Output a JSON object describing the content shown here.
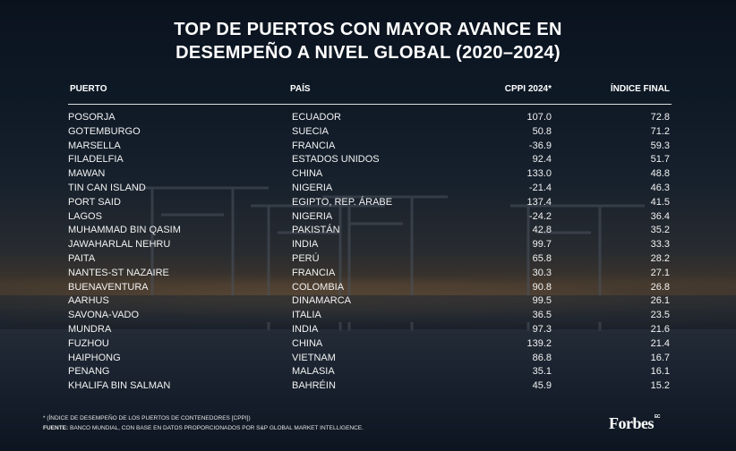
{
  "title": {
    "line1": "TOP DE PUERTOS CON MAYOR AVANCE EN",
    "line2": "DESEMPEÑO A NIVEL GLOBAL (2020–2024)"
  },
  "table": {
    "headers": {
      "port": "PUERTO",
      "country": "PAÍS",
      "cppi": "CPPI 2024*",
      "index": "ÍNDICE FINAL"
    },
    "rows": [
      {
        "port": "POSORJA",
        "country": "ECUADOR",
        "cppi": "107.0",
        "index": "72.8"
      },
      {
        "port": "GOTEMBURGO",
        "country": "SUECIA",
        "cppi": "50.8",
        "index": "71.2"
      },
      {
        "port": "MARSELLA",
        "country": "FRANCIA",
        "cppi": "-36.9",
        "index": "59.3"
      },
      {
        "port": "FILADELFIA",
        "country": "ESTADOS UNIDOS",
        "cppi": "92.4",
        "index": "51.7"
      },
      {
        "port": "MAWAN",
        "country": "CHINA",
        "cppi": "133.0",
        "index": "48.8"
      },
      {
        "port": "TIN CAN ISLAND",
        "country": "NIGERIA",
        "cppi": "-21.4",
        "index": "46.3"
      },
      {
        "port": "PORT SAID",
        "country": "EGIPTO, REP. ÁRABE",
        "cppi": "137.4",
        "index": "41.5"
      },
      {
        "port": "LAGOS",
        "country": "NIGERIA",
        "cppi": "-24.2",
        "index": "36.4"
      },
      {
        "port": "MUHAMMAD BIN QASIM",
        "country": "PAKISTÁN",
        "cppi": "42.8",
        "index": "35.2"
      },
      {
        "port": "JAWAHARLAL NEHRU",
        "country": "INDIA",
        "cppi": "99.7",
        "index": "33.3"
      },
      {
        "port": "PAITA",
        "country": "PERÚ",
        "cppi": "65.8",
        "index": "28.2"
      },
      {
        "port": "NANTES-ST NAZAIRE",
        "country": "FRANCIA",
        "cppi": "30.3",
        "index": "27.1"
      },
      {
        "port": "BUENAVENTURA",
        "country": "COLOMBIA",
        "cppi": "90.8",
        "index": "26.8"
      },
      {
        "port": "AARHUS",
        "country": "DINAMARCA",
        "cppi": "99.5",
        "index": "26.1"
      },
      {
        "port": "SAVONA-VADO",
        "country": "ITALIA",
        "cppi": "36.5",
        "index": "23.5"
      },
      {
        "port": "MUNDRA",
        "country": "INDIA",
        "cppi": "97.3",
        "index": "21.6"
      },
      {
        "port": "FUZHOU",
        "country": "CHINA",
        "cppi": "139.2",
        "index": "21.4"
      },
      {
        "port": "HAIPHONG",
        "country": "VIETNAM",
        "cppi": "86.8",
        "index": "16.7"
      },
      {
        "port": "PENANG",
        "country": "MALASIA",
        "cppi": "35.1",
        "index": "16.1"
      },
      {
        "port": "KHALIFA BIN SALMAN",
        "country": "BAHRÉIN",
        "cppi": "45.9",
        "index": "15.2"
      }
    ]
  },
  "footnote": {
    "note": "* (ÍNDICE DE DESEMPEÑO DE LOS PUERTOS DE CONTENEDORES [CPPI])",
    "source_label": "FUENTE:",
    "source_text": " BANCO MUNDIAL, CON BASE EN DATOS PROPORCIONADOS POR S&P GLOBAL MARKET INTELLIGENCE."
  },
  "brand": {
    "name": "Forbes",
    "suffix": "EC"
  }
}
